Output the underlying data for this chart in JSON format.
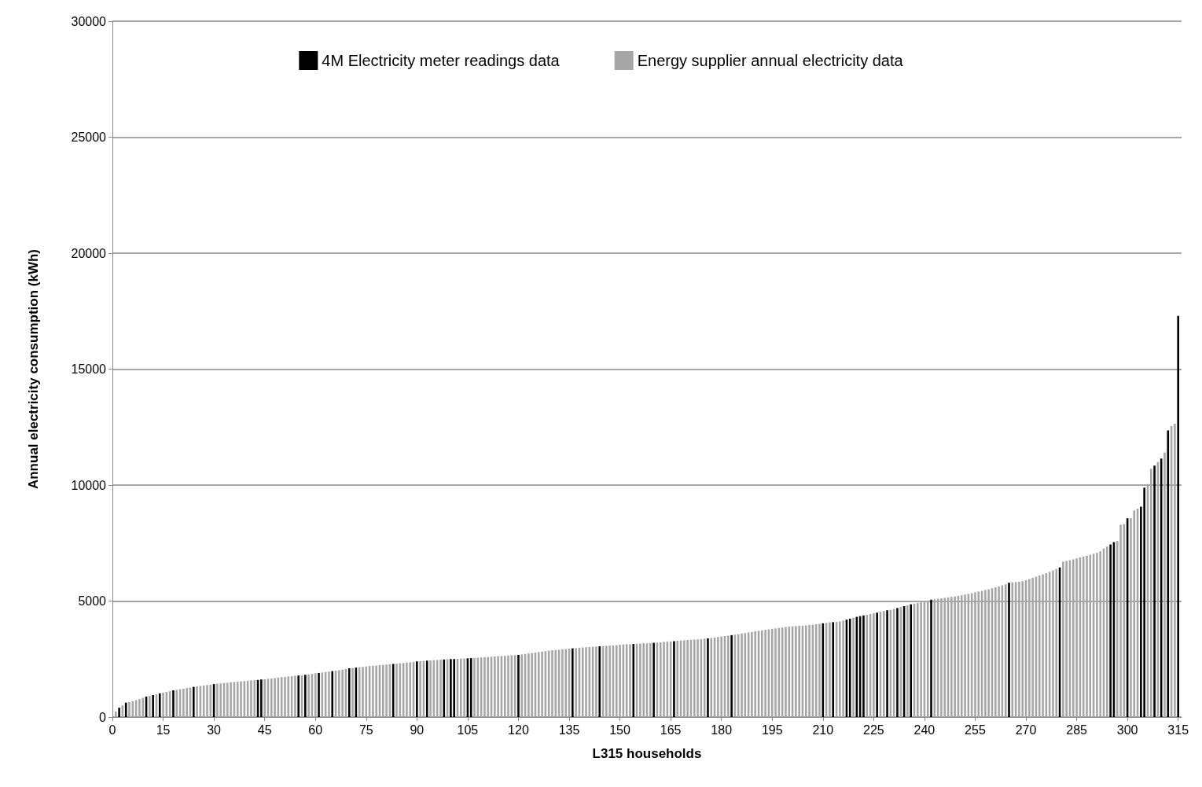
{
  "chart_data": {
    "type": "bar",
    "xlabel": "L315 households",
    "ylabel": "Annual electricity consumption (kWh)",
    "xlim": [
      0,
      316
    ],
    "xticks": [
      0,
      15,
      30,
      45,
      60,
      75,
      90,
      105,
      120,
      135,
      150,
      165,
      180,
      195,
      210,
      225,
      240,
      255,
      270,
      285,
      300,
      315
    ],
    "ylim": [
      0,
      30000
    ],
    "yticks": [
      0,
      5000,
      10000,
      15000,
      20000,
      25000,
      30000
    ],
    "grid": "y",
    "legend": "top",
    "series": [
      {
        "name": "4M Electricity meter readings data",
        "color": "#000000",
        "x": [
          2,
          4,
          10,
          12,
          14,
          18,
          24,
          30,
          43,
          44,
          55,
          57,
          61,
          65,
          70,
          72,
          83,
          90,
          93,
          98,
          100,
          101,
          105,
          106,
          120,
          136,
          144,
          154,
          160,
          166,
          176,
          183,
          210,
          213,
          217,
          218,
          220,
          221,
          222,
          226,
          229,
          232,
          234,
          236,
          242,
          265,
          280,
          295,
          296,
          300,
          304,
          305,
          308,
          310,
          312,
          315
        ],
        "values": [
          400,
          620,
          880,
          950,
          1020,
          1150,
          1300,
          1420,
          1600,
          1620,
          1790,
          1820,
          1900,
          1980,
          2100,
          2130,
          2290,
          2400,
          2430,
          2480,
          2500,
          2500,
          2530,
          2540,
          2680,
          2960,
          3050,
          3150,
          3200,
          3270,
          3390,
          3530,
          4040,
          4090,
          4200,
          4240,
          4320,
          4350,
          4380,
          4500,
          4600,
          4700,
          4780,
          4860,
          5060,
          5790,
          6450,
          7440,
          7540,
          8570,
          9070,
          9890,
          10840,
          11140,
          12360,
          17300
        ]
      },
      {
        "name": "Energy supplier annual electricity data",
        "color": "#a6a6a6",
        "x": [
          1,
          3,
          5,
          6,
          7,
          8,
          9,
          11,
          13,
          15,
          16,
          17,
          19,
          20,
          21,
          22,
          23,
          25,
          26,
          27,
          28,
          29,
          31,
          32,
          33,
          34,
          35,
          36,
          37,
          38,
          39,
          40,
          41,
          42,
          45,
          46,
          47,
          48,
          49,
          50,
          51,
          52,
          53,
          54,
          56,
          58,
          59,
          60,
          62,
          63,
          64,
          66,
          67,
          68,
          69,
          71,
          73,
          74,
          75,
          76,
          77,
          78,
          79,
          80,
          81,
          82,
          84,
          85,
          86,
          87,
          88,
          89,
          91,
          92,
          94,
          95,
          96,
          97,
          99,
          102,
          103,
          104,
          107,
          108,
          109,
          110,
          111,
          112,
          113,
          114,
          115,
          116,
          117,
          118,
          119,
          121,
          122,
          123,
          124,
          125,
          126,
          127,
          128,
          129,
          130,
          131,
          132,
          133,
          134,
          135,
          137,
          138,
          139,
          140,
          141,
          142,
          143,
          145,
          146,
          147,
          148,
          149,
          150,
          151,
          152,
          153,
          155,
          156,
          157,
          158,
          159,
          161,
          162,
          163,
          164,
          165,
          167,
          168,
          169,
          170,
          171,
          172,
          173,
          174,
          175,
          177,
          178,
          179,
          180,
          181,
          182,
          184,
          185,
          186,
          187,
          188,
          189,
          190,
          191,
          192,
          193,
          194,
          195,
          196,
          197,
          198,
          199,
          200,
          201,
          202,
          203,
          204,
          205,
          206,
          207,
          208,
          209,
          211,
          212,
          214,
          215,
          216,
          219,
          223,
          224,
          225,
          227,
          228,
          230,
          231,
          233,
          235,
          237,
          238,
          239,
          240,
          241,
          243,
          244,
          245,
          246,
          247,
          248,
          249,
          250,
          251,
          252,
          253,
          254,
          255,
          256,
          257,
          258,
          259,
          260,
          261,
          262,
          263,
          264,
          266,
          267,
          268,
          269,
          270,
          271,
          272,
          273,
          274,
          275,
          276,
          277,
          278,
          279,
          281,
          282,
          283,
          284,
          285,
          286,
          287,
          288,
          289,
          290,
          291,
          292,
          293,
          294,
          297,
          298,
          299,
          301,
          302,
          303,
          306,
          307,
          309,
          311,
          313,
          314
        ],
        "values": [
          240,
          500,
          650,
          680,
          730,
          780,
          830,
          910,
          980,
          1050,
          1080,
          1110,
          1170,
          1200,
          1220,
          1250,
          1270,
          1320,
          1340,
          1360,
          1380,
          1400,
          1440,
          1450,
          1470,
          1480,
          1500,
          1510,
          1520,
          1540,
          1550,
          1560,
          1580,
          1590,
          1630,
          1650,
          1660,
          1680,
          1700,
          1720,
          1730,
          1750,
          1760,
          1780,
          1800,
          1840,
          1860,
          1890,
          1920,
          1940,
          1960,
          2000,
          2020,
          2040,
          2070,
          2110,
          2150,
          2160,
          2180,
          2200,
          2210,
          2220,
          2240,
          2250,
          2260,
          2280,
          2300,
          2320,
          2330,
          2350,
          2360,
          2380,
          2410,
          2420,
          2440,
          2450,
          2460,
          2470,
          2490,
          2510,
          2520,
          2520,
          2550,
          2560,
          2570,
          2580,
          2590,
          2600,
          2610,
          2620,
          2630,
          2640,
          2650,
          2660,
          2670,
          2700,
          2720,
          2740,
          2760,
          2780,
          2800,
          2820,
          2840,
          2860,
          2880,
          2890,
          2900,
          2920,
          2930,
          2950,
          2970,
          2990,
          3000,
          3010,
          3020,
          3030,
          3040,
          3060,
          3070,
          3080,
          3090,
          3100,
          3120,
          3130,
          3140,
          3140,
          3160,
          3170,
          3180,
          3180,
          3190,
          3210,
          3220,
          3240,
          3250,
          3260,
          3290,
          3300,
          3310,
          3320,
          3330,
          3340,
          3350,
          3360,
          3380,
          3410,
          3430,
          3450,
          3470,
          3490,
          3510,
          3550,
          3570,
          3600,
          3620,
          3650,
          3670,
          3700,
          3720,
          3740,
          3760,
          3780,
          3800,
          3820,
          3840,
          3860,
          3880,
          3900,
          3910,
          3920,
          3930,
          3940,
          3950,
          3970,
          3980,
          4000,
          4020,
          4060,
          4080,
          4100,
          4120,
          4160,
          4280,
          4410,
          4440,
          4470,
          4540,
          4570,
          4620,
          4660,
          4740,
          4820,
          4890,
          4920,
          4950,
          4980,
          5000,
          5080,
          5100,
          5120,
          5140,
          5160,
          5180,
          5200,
          5220,
          5250,
          5280,
          5310,
          5340,
          5380,
          5410,
          5440,
          5480,
          5510,
          5550,
          5590,
          5630,
          5680,
          5720,
          5810,
          5820,
          5830,
          5860,
          5900,
          5950,
          6000,
          6050,
          6100,
          6150,
          6200,
          6260,
          6320,
          6380,
          6700,
          6730,
          6760,
          6800,
          6840,
          6880,
          6920,
          6960,
          7000,
          7040,
          7080,
          7150,
          7270,
          7350,
          7590,
          8290,
          8320,
          8570,
          8910,
          8980,
          10040,
          10700,
          11000,
          11410,
          12540,
          12640
        ]
      }
    ]
  }
}
